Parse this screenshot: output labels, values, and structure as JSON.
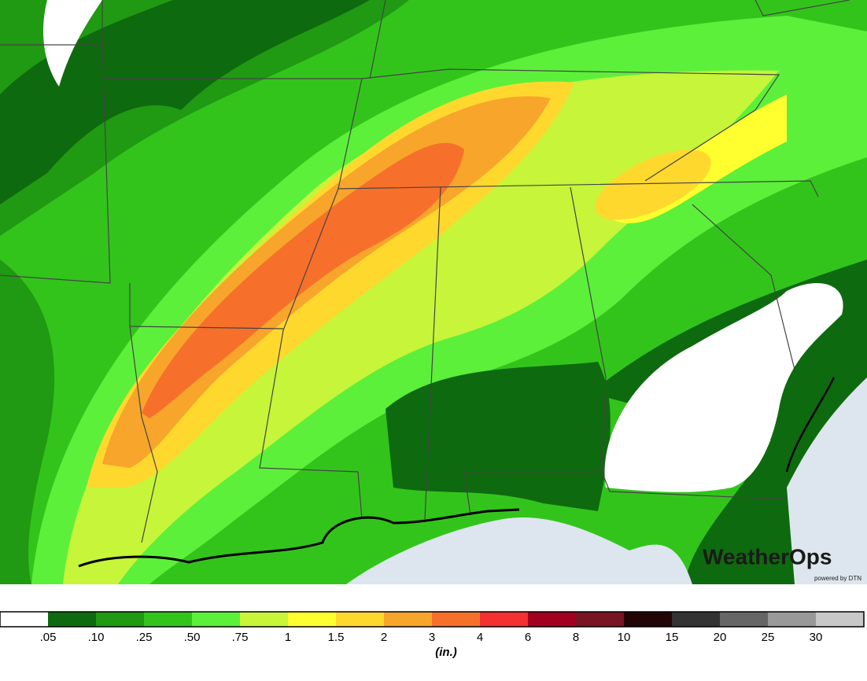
{
  "logo": {
    "name": "WeatherOps",
    "tagline": "powered by DTN"
  },
  "legend": {
    "labels": [
      ".05",
      ".10",
      ".25",
      ".50",
      ".75",
      "1",
      "1.5",
      "2",
      "3",
      "4",
      "6",
      "8",
      "10",
      "15",
      "20",
      "25",
      "30"
    ],
    "colors": [
      "#ffffff",
      "#0e6a0e",
      "#1f9a12",
      "#33c41c",
      "#5cf03a",
      "#c6f53a",
      "#ffff30",
      "#ffd82e",
      "#f8a52b",
      "#f6702b",
      "#f43030",
      "#a3001f",
      "#781424",
      "#230508",
      "#333333",
      "#666666",
      "#999999",
      "#c8c8c8"
    ],
    "unit": "(in.)"
  }
}
